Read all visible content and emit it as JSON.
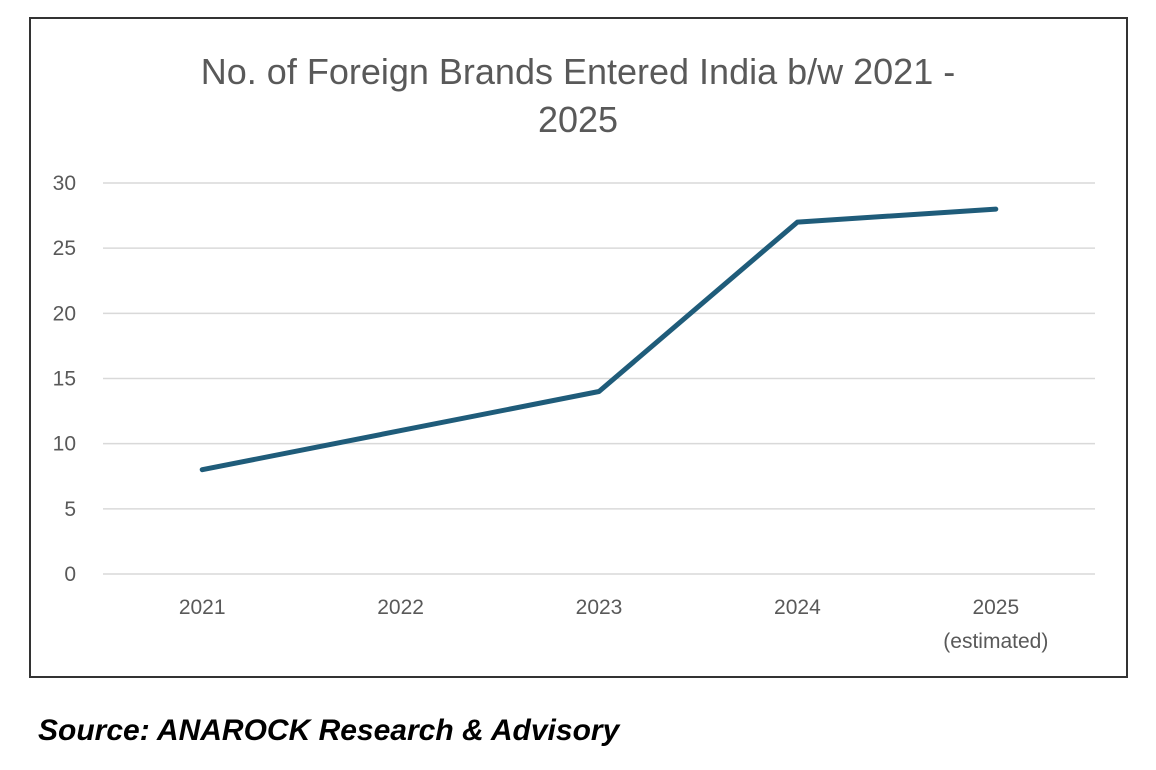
{
  "chart_data": {
    "type": "line",
    "title_lines": [
      "No. of Foreign Brands Entered India b/w 2021 -",
      "2025"
    ],
    "categories": [
      [
        "2021"
      ],
      [
        "2022"
      ],
      [
        "2023"
      ],
      [
        "2024"
      ],
      [
        "2025",
        "(estimated)"
      ]
    ],
    "series": [
      {
        "values": [
          8,
          11,
          14,
          27,
          28
        ],
        "color": "#1f5c7a"
      }
    ],
    "y_ticks": [
      "0",
      "5",
      "10",
      "15",
      "20",
      "25",
      "30"
    ],
    "ylim": [
      0,
      30
    ],
    "grid": true,
    "legend": "none"
  },
  "source": "Source: ANAROCK Research & Advisory"
}
